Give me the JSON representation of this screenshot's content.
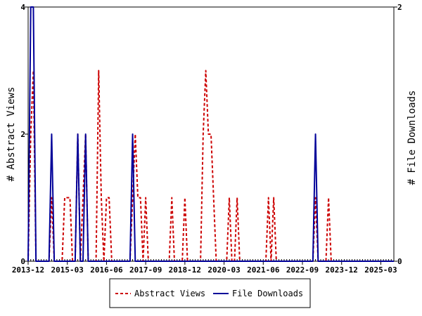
{
  "chart_data": {
    "type": "line",
    "x_tick_labels": [
      "2013-12",
      "2015-03",
      "2016-06",
      "2017-09",
      "2018-12",
      "2020-03",
      "2021-06",
      "2022-09",
      "2023-12",
      "2025-03"
    ],
    "x_range": [
      "2013-12",
      "2025-08"
    ],
    "y_left": {
      "label": "# Abstract Views",
      "ticks": [
        0,
        2,
        4
      ],
      "range": [
        0,
        4
      ]
    },
    "y_right": {
      "label": "# File Downloads",
      "ticks": [
        0,
        2
      ],
      "range": [
        0,
        2
      ]
    },
    "grid": false,
    "legend_position": "bottom",
    "series": [
      {
        "name": "Abstract Views",
        "axis": "left",
        "color": "#cc0000",
        "style": "dashed",
        "points": [
          [
            "2013-12",
            0
          ],
          [
            "2014-01",
            2
          ],
          [
            "2014-02",
            3
          ],
          [
            "2014-03",
            0
          ],
          [
            "2014-04",
            0
          ],
          [
            "2014-05",
            0
          ],
          [
            "2014-06",
            0
          ],
          [
            "2014-07",
            0
          ],
          [
            "2014-08",
            0
          ],
          [
            "2014-09",
            1
          ],
          [
            "2014-10",
            0
          ],
          [
            "2014-11",
            0
          ],
          [
            "2014-12",
            0
          ],
          [
            "2015-01",
            0
          ],
          [
            "2015-02",
            1
          ],
          [
            "2015-03",
            1
          ],
          [
            "2015-04",
            1
          ],
          [
            "2015-05",
            0
          ],
          [
            "2015-06",
            0
          ],
          [
            "2015-07",
            2
          ],
          [
            "2015-08",
            0
          ],
          [
            "2015-09",
            1
          ],
          [
            "2015-10",
            2
          ],
          [
            "2015-11",
            0
          ],
          [
            "2015-12",
            0
          ],
          [
            "2016-01",
            0
          ],
          [
            "2016-02",
            0
          ],
          [
            "2016-03",
            3
          ],
          [
            "2016-04",
            1
          ],
          [
            "2016-05",
            0
          ],
          [
            "2016-06",
            1
          ],
          [
            "2016-07",
            1
          ],
          [
            "2016-08",
            0
          ],
          [
            "2016-09",
            0
          ],
          [
            "2016-10",
            0
          ],
          [
            "2016-11",
            0
          ],
          [
            "2016-12",
            0
          ],
          [
            "2017-01",
            0
          ],
          [
            "2017-02",
            0
          ],
          [
            "2017-03",
            0
          ],
          [
            "2017-04",
            1
          ],
          [
            "2017-05",
            2
          ],
          [
            "2017-06",
            1
          ],
          [
            "2017-07",
            1
          ],
          [
            "2017-08",
            0
          ],
          [
            "2017-09",
            1
          ],
          [
            "2017-10",
            0
          ],
          [
            "2017-11",
            0
          ],
          [
            "2017-12",
            0
          ],
          [
            "2018-01",
            0
          ],
          [
            "2018-02",
            0
          ],
          [
            "2018-03",
            0
          ],
          [
            "2018-04",
            0
          ],
          [
            "2018-05",
            0
          ],
          [
            "2018-06",
            0
          ],
          [
            "2018-07",
            1
          ],
          [
            "2018-08",
            0
          ],
          [
            "2018-09",
            0
          ],
          [
            "2018-10",
            0
          ],
          [
            "2018-11",
            0
          ],
          [
            "2018-12",
            1
          ],
          [
            "2019-01",
            0
          ],
          [
            "2019-02",
            0
          ],
          [
            "2019-03",
            0
          ],
          [
            "2019-04",
            0
          ],
          [
            "2019-05",
            0
          ],
          [
            "2019-06",
            0
          ],
          [
            "2019-07",
            2
          ],
          [
            "2019-08",
            3
          ],
          [
            "2019-09",
            2
          ],
          [
            "2019-10",
            2
          ],
          [
            "2019-11",
            1
          ],
          [
            "2019-12",
            0
          ],
          [
            "2020-01",
            0
          ],
          [
            "2020-02",
            0
          ],
          [
            "2020-03",
            0
          ],
          [
            "2020-04",
            0
          ],
          [
            "2020-05",
            1
          ],
          [
            "2020-06",
            0
          ],
          [
            "2020-07",
            0
          ],
          [
            "2020-08",
            1
          ],
          [
            "2020-09",
            0
          ],
          [
            "2020-10",
            0
          ],
          [
            "2020-11",
            0
          ],
          [
            "2020-12",
            0
          ],
          [
            "2021-01",
            0
          ],
          [
            "2021-02",
            0
          ],
          [
            "2021-03",
            0
          ],
          [
            "2021-04",
            0
          ],
          [
            "2021-05",
            0
          ],
          [
            "2021-06",
            0
          ],
          [
            "2021-07",
            0
          ],
          [
            "2021-08",
            1
          ],
          [
            "2021-09",
            0
          ],
          [
            "2021-10",
            1
          ],
          [
            "2021-11",
            0
          ],
          [
            "2021-12",
            0
          ],
          [
            "2022-01",
            0
          ],
          [
            "2022-02",
            0
          ],
          [
            "2022-03",
            0
          ],
          [
            "2022-04",
            0
          ],
          [
            "2022-05",
            0
          ],
          [
            "2022-06",
            0
          ],
          [
            "2022-07",
            0
          ],
          [
            "2022-08",
            0
          ],
          [
            "2022-09",
            0
          ],
          [
            "2022-10",
            0
          ],
          [
            "2022-11",
            0
          ],
          [
            "2022-12",
            0
          ],
          [
            "2023-01",
            0
          ],
          [
            "2023-02",
            1
          ],
          [
            "2023-03",
            0
          ],
          [
            "2023-04",
            0
          ],
          [
            "2023-05",
            0
          ],
          [
            "2023-06",
            0
          ],
          [
            "2023-07",
            1
          ],
          [
            "2023-08",
            0
          ],
          [
            "2023-09",
            0
          ],
          [
            "2023-10",
            0
          ],
          [
            "2023-11",
            0
          ],
          [
            "2023-12",
            0
          ],
          [
            "2024-01",
            0
          ],
          [
            "2024-02",
            0
          ],
          [
            "2024-03",
            0
          ],
          [
            "2024-04",
            0
          ],
          [
            "2024-05",
            0
          ],
          [
            "2024-06",
            0
          ],
          [
            "2024-07",
            0
          ],
          [
            "2024-08",
            0
          ],
          [
            "2024-09",
            0
          ],
          [
            "2024-10",
            0
          ],
          [
            "2024-11",
            0
          ],
          [
            "2024-12",
            0
          ],
          [
            "2025-01",
            0
          ],
          [
            "2025-02",
            0
          ],
          [
            "2025-03",
            0
          ],
          [
            "2025-04",
            0
          ],
          [
            "2025-05",
            0
          ],
          [
            "2025-06",
            0
          ],
          [
            "2025-07",
            0
          ],
          [
            "2025-08",
            0
          ]
        ]
      },
      {
        "name": "File Downloads",
        "axis": "right",
        "color": "#000099",
        "style": "solid",
        "points": [
          [
            "2013-12",
            0
          ],
          [
            "2014-01",
            2
          ],
          [
            "2014-02",
            2
          ],
          [
            "2014-03",
            0
          ],
          [
            "2014-04",
            0
          ],
          [
            "2014-05",
            0
          ],
          [
            "2014-06",
            0
          ],
          [
            "2014-07",
            0
          ],
          [
            "2014-08",
            0
          ],
          [
            "2014-09",
            1
          ],
          [
            "2014-10",
            0
          ],
          [
            "2014-11",
            0
          ],
          [
            "2014-12",
            0
          ],
          [
            "2015-01",
            0
          ],
          [
            "2015-02",
            0
          ],
          [
            "2015-03",
            0
          ],
          [
            "2015-04",
            0
          ],
          [
            "2015-05",
            0
          ],
          [
            "2015-06",
            0
          ],
          [
            "2015-07",
            1
          ],
          [
            "2015-08",
            0
          ],
          [
            "2015-09",
            0
          ],
          [
            "2015-10",
            1
          ],
          [
            "2015-11",
            0
          ],
          [
            "2015-12",
            0
          ],
          [
            "2016-01",
            0
          ],
          [
            "2016-02",
            0
          ],
          [
            "2016-03",
            0
          ],
          [
            "2016-04",
            0
          ],
          [
            "2016-05",
            0
          ],
          [
            "2016-06",
            0
          ],
          [
            "2016-07",
            0
          ],
          [
            "2016-08",
            0
          ],
          [
            "2016-09",
            0
          ],
          [
            "2016-10",
            0
          ],
          [
            "2016-11",
            0
          ],
          [
            "2016-12",
            0
          ],
          [
            "2017-01",
            0
          ],
          [
            "2017-02",
            0
          ],
          [
            "2017-03",
            0
          ],
          [
            "2017-04",
            1
          ],
          [
            "2017-05",
            0
          ],
          [
            "2017-06",
            0
          ],
          [
            "2017-07",
            0
          ],
          [
            "2017-08",
            0
          ],
          [
            "2017-09",
            0
          ],
          [
            "2017-10",
            0
          ],
          [
            "2017-11",
            0
          ],
          [
            "2017-12",
            0
          ],
          [
            "2018-01",
            0
          ],
          [
            "2018-02",
            0
          ],
          [
            "2018-03",
            0
          ],
          [
            "2018-04",
            0
          ],
          [
            "2018-05",
            0
          ],
          [
            "2018-06",
            0
          ],
          [
            "2018-07",
            0
          ],
          [
            "2018-08",
            0
          ],
          [
            "2018-09",
            0
          ],
          [
            "2018-10",
            0
          ],
          [
            "2018-11",
            0
          ],
          [
            "2018-12",
            0
          ],
          [
            "2019-01",
            0
          ],
          [
            "2019-02",
            0
          ],
          [
            "2019-03",
            0
          ],
          [
            "2019-04",
            0
          ],
          [
            "2019-05",
            0
          ],
          [
            "2019-06",
            0
          ],
          [
            "2019-07",
            0
          ],
          [
            "2019-08",
            0
          ],
          [
            "2019-09",
            0
          ],
          [
            "2019-10",
            0
          ],
          [
            "2019-11",
            0
          ],
          [
            "2019-12",
            0
          ],
          [
            "2020-01",
            0
          ],
          [
            "2020-02",
            0
          ],
          [
            "2020-03",
            0
          ],
          [
            "2020-04",
            0
          ],
          [
            "2020-05",
            0
          ],
          [
            "2020-06",
            0
          ],
          [
            "2020-07",
            0
          ],
          [
            "2020-08",
            0
          ],
          [
            "2020-09",
            0
          ],
          [
            "2020-10",
            0
          ],
          [
            "2020-11",
            0
          ],
          [
            "2020-12",
            0
          ],
          [
            "2021-01",
            0
          ],
          [
            "2021-02",
            0
          ],
          [
            "2021-03",
            0
          ],
          [
            "2021-04",
            0
          ],
          [
            "2021-05",
            0
          ],
          [
            "2021-06",
            0
          ],
          [
            "2021-07",
            0
          ],
          [
            "2021-08",
            0
          ],
          [
            "2021-09",
            0
          ],
          [
            "2021-10",
            0
          ],
          [
            "2021-11",
            0
          ],
          [
            "2021-12",
            0
          ],
          [
            "2022-01",
            0
          ],
          [
            "2022-02",
            0
          ],
          [
            "2022-03",
            0
          ],
          [
            "2022-04",
            0
          ],
          [
            "2022-05",
            0
          ],
          [
            "2022-06",
            0
          ],
          [
            "2022-07",
            0
          ],
          [
            "2022-08",
            0
          ],
          [
            "2022-09",
            0
          ],
          [
            "2022-10",
            0
          ],
          [
            "2022-11",
            0
          ],
          [
            "2022-12",
            0
          ],
          [
            "2023-01",
            0
          ],
          [
            "2023-02",
            1
          ],
          [
            "2023-03",
            0
          ],
          [
            "2023-04",
            0
          ],
          [
            "2023-05",
            0
          ],
          [
            "2023-06",
            0
          ],
          [
            "2023-07",
            0
          ],
          [
            "2023-08",
            0
          ],
          [
            "2023-09",
            0
          ],
          [
            "2023-10",
            0
          ],
          [
            "2023-11",
            0
          ],
          [
            "2023-12",
            0
          ],
          [
            "2024-01",
            0
          ],
          [
            "2024-02",
            0
          ],
          [
            "2024-03",
            0
          ],
          [
            "2024-04",
            0
          ],
          [
            "2024-05",
            0
          ],
          [
            "2024-06",
            0
          ],
          [
            "2024-07",
            0
          ],
          [
            "2024-08",
            0
          ],
          [
            "2024-09",
            0
          ],
          [
            "2024-10",
            0
          ],
          [
            "2024-11",
            0
          ],
          [
            "2024-12",
            0
          ],
          [
            "2025-01",
            0
          ],
          [
            "2025-02",
            0
          ],
          [
            "2025-03",
            0
          ],
          [
            "2025-04",
            0
          ],
          [
            "2025-05",
            0
          ],
          [
            "2025-06",
            0
          ],
          [
            "2025-07",
            0
          ],
          [
            "2025-08",
            0
          ]
        ]
      }
    ]
  }
}
